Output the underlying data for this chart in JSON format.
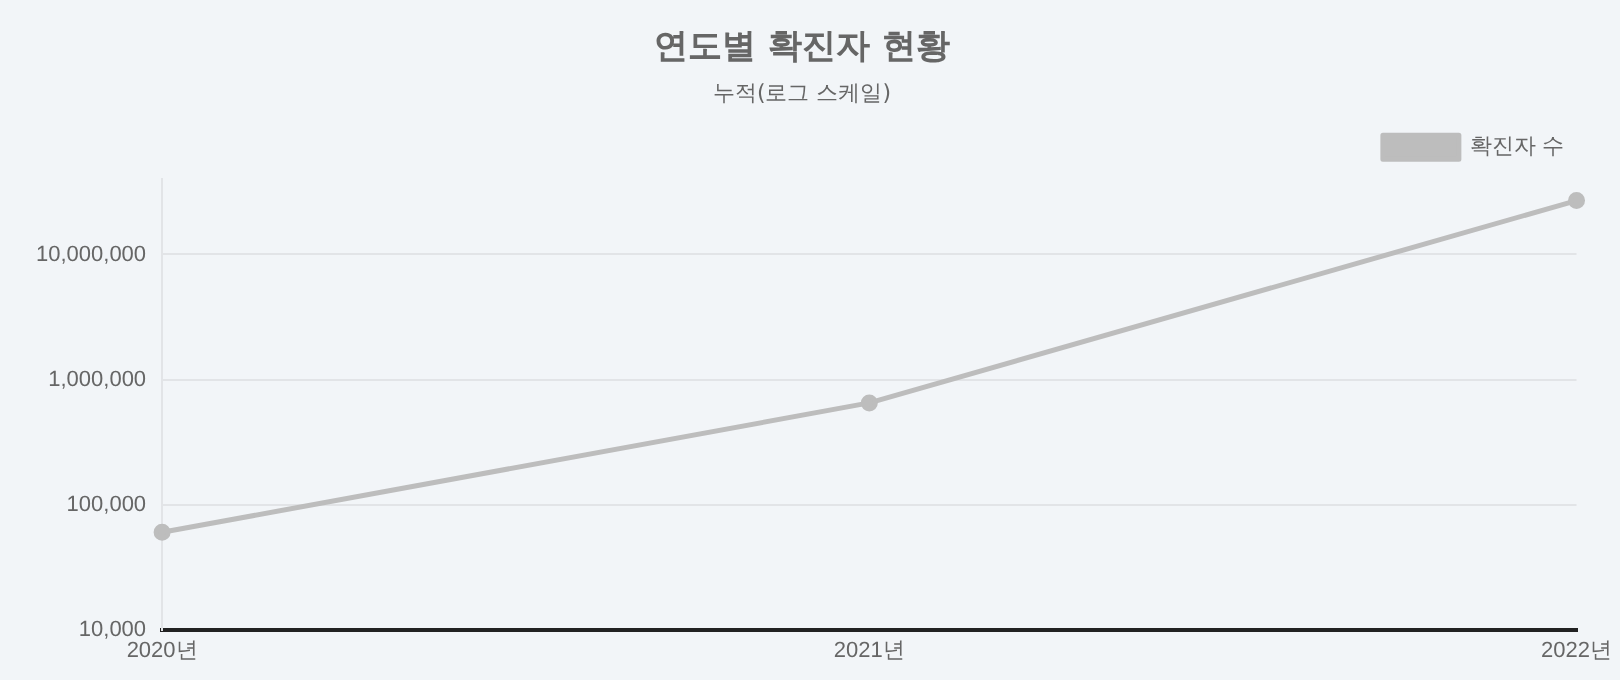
{
  "chart_data": {
    "type": "line",
    "title": "연도별 확진자 현황",
    "subtitle": "누적(로그 스케일)",
    "categories": [
      "2020년",
      "2021년",
      "2022년"
    ],
    "series": [
      {
        "name": "확진자 수",
        "color": "#bdbdbd",
        "values": [
          60000,
          650000,
          27000000
        ]
      }
    ],
    "log": "y",
    "ylim": [
      10000,
      40000000
    ],
    "yticks": [
      {
        "value": 10000,
        "label": "10,000"
      },
      {
        "value": 100000,
        "label": "100,000"
      },
      {
        "value": 1000000,
        "label": "1,000,000"
      },
      {
        "value": 10000000,
        "label": "10,000,000"
      }
    ],
    "grid": "y",
    "legend": "top right",
    "marker": "circle",
    "line_style": "solid"
  }
}
